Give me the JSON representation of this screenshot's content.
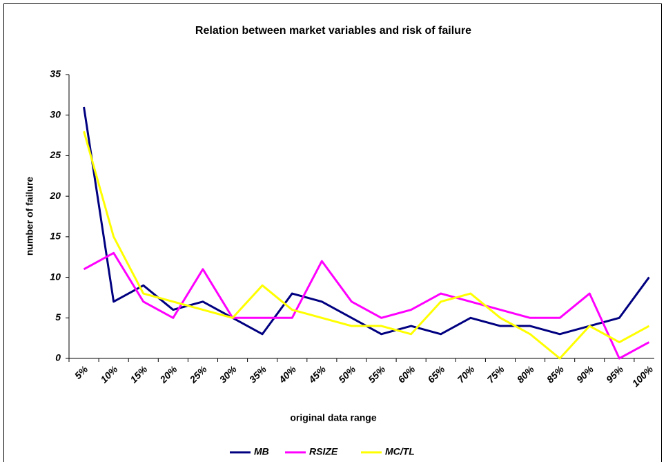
{
  "chart_data": {
    "type": "line",
    "title": "Relation between market variables and risk of failure",
    "xlabel": "original data range",
    "ylabel": "number of failure",
    "categories": [
      "5%",
      "10%",
      "15%",
      "20%",
      "25%",
      "30%",
      "35%",
      "40%",
      "45%",
      "50%",
      "55%",
      "60%",
      "65%",
      "70%",
      "75%",
      "80%",
      "85%",
      "90%",
      "95%",
      "100%"
    ],
    "series": [
      {
        "name": "MB",
        "color": "#000080",
        "values": [
          31,
          7,
          9,
          6,
          7,
          5,
          3,
          8,
          7,
          5,
          3,
          4,
          3,
          5,
          4,
          4,
          3,
          4,
          5,
          10
        ]
      },
      {
        "name": "RSIZE",
        "color": "#ff00ff",
        "values": [
          11,
          13,
          7,
          5,
          11,
          5,
          5,
          5,
          12,
          7,
          5,
          6,
          8,
          7,
          6,
          5,
          5,
          8,
          0,
          2
        ]
      },
      {
        "name": "MC/TL",
        "color": "#ffff00",
        "values": [
          28,
          15,
          8,
          7,
          6,
          5,
          9,
          6,
          5,
          4,
          4,
          3,
          7,
          8,
          5,
          3,
          0,
          4,
          2,
          4
        ]
      }
    ],
    "ylim": [
      0,
      35
    ],
    "yticks": [
      0,
      5,
      10,
      15,
      20,
      25,
      30,
      35
    ],
    "grid": false,
    "legend": "bottom"
  }
}
